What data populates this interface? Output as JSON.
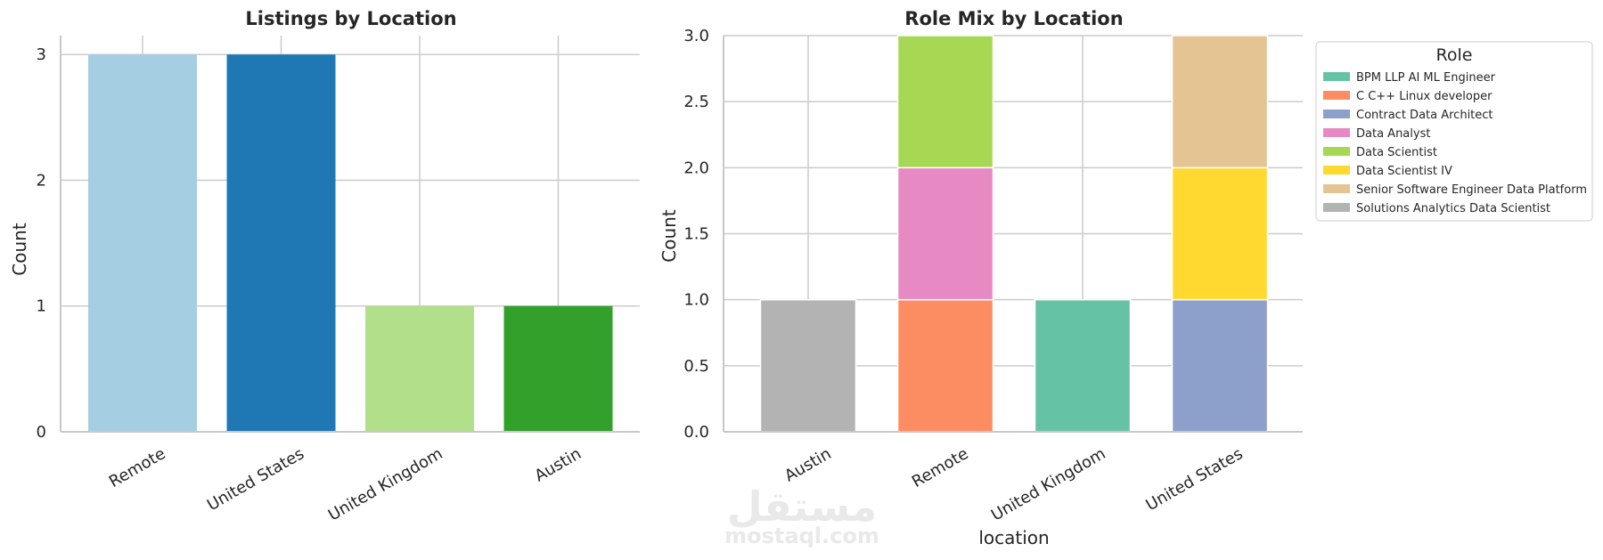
{
  "watermark": {
    "logo": "مستقل",
    "text": "mostaql.com"
  },
  "chart_data": [
    {
      "type": "bar",
      "title": "Listings by Location",
      "xlabel": "",
      "ylabel": "Count",
      "categories": [
        "Remote",
        "United States",
        "United Kingdom",
        "Austin"
      ],
      "values": [
        3,
        3,
        1,
        1
      ],
      "colors": [
        "#a6cee3",
        "#1f78b4",
        "#b2df8a",
        "#33a02c"
      ],
      "ylim": [
        0,
        3.15
      ],
      "yticks": [
        0,
        1,
        2,
        3
      ],
      "ytick_labels": [
        "0",
        "1",
        "2",
        "3"
      ],
      "grid": true
    },
    {
      "type": "bar",
      "stacked": true,
      "title": "Role Mix by Location",
      "xlabel": "location",
      "ylabel": "Count",
      "categories": [
        "Austin",
        "Remote",
        "United Kingdom",
        "United States"
      ],
      "ylim": [
        0,
        3.0
      ],
      "yticks": [
        0,
        0.5,
        1.0,
        1.5,
        2.0,
        2.5,
        3.0
      ],
      "ytick_labels": [
        "0.0",
        "0.5",
        "1.0",
        "1.5",
        "2.0",
        "2.5",
        "3.0"
      ],
      "grid": true,
      "legend": {
        "title": "Role",
        "placement": "outside right"
      },
      "series": [
        {
          "name": "BPM LLP AI ML Engineer",
          "color": "#66c2a5",
          "values": [
            0,
            0,
            1,
            0
          ]
        },
        {
          "name": "C C++ Linux developer",
          "color": "#fc8d62",
          "values": [
            0,
            1,
            0,
            0
          ]
        },
        {
          "name": "Contract Data Architect",
          "color": "#8da0cb",
          "values": [
            0,
            0,
            0,
            1
          ]
        },
        {
          "name": "Data Analyst",
          "color": "#e78ac3",
          "values": [
            0,
            1,
            0,
            0
          ]
        },
        {
          "name": "Data Scientist",
          "color": "#a6d854",
          "values": [
            0,
            1,
            0,
            0
          ]
        },
        {
          "name": "Data Scientist IV",
          "color": "#ffd92f",
          "values": [
            0,
            0,
            0,
            1
          ]
        },
        {
          "name": "Senior Software Engineer Data Platform",
          "color": "#e5c494",
          "values": [
            0,
            0,
            0,
            1
          ]
        },
        {
          "name": "Solutions Analytics Data Scientist",
          "color": "#b3b3b3",
          "values": [
            1,
            0,
            0,
            0
          ]
        }
      ]
    }
  ]
}
